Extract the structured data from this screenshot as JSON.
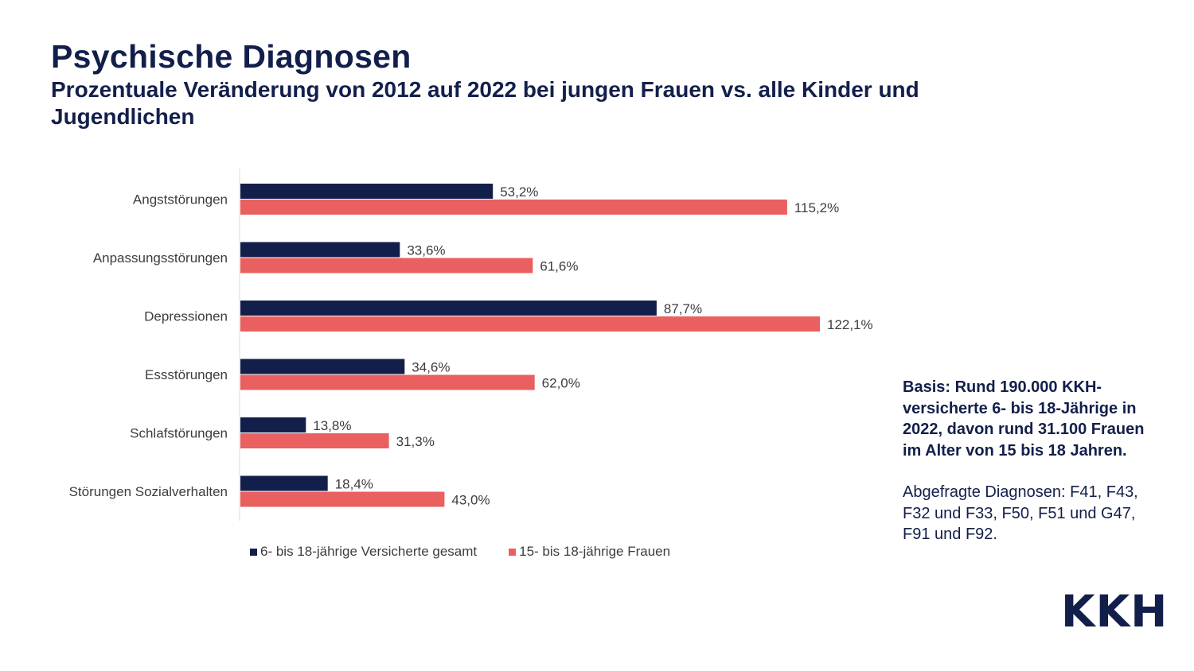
{
  "header": {
    "title": "Psychische Diagnosen",
    "subtitle": "Prozentuale Veränderung von 2012 auf 2022 bei jungen Frauen vs. alle Kinder und Jugendlichen"
  },
  "colors": {
    "navy": "#131f4b",
    "coral": "#ea5f5f",
    "text": "#3d3d3d",
    "axis": "#d9d9d9"
  },
  "chart_data": {
    "type": "bar",
    "orientation": "horizontal",
    "title": "Psychische Diagnosen",
    "categories": [
      "Angststörungen",
      "Anpassungsstörungen",
      "Depressionen",
      "Essstörungen",
      "Schlafstörungen",
      "Störungen Sozialverhalten"
    ],
    "series": [
      {
        "name": "6- bis 18-jährige Versicherte gesamt",
        "color": "#131f4b",
        "values": [
          53.2,
          33.6,
          87.7,
          34.6,
          13.8,
          18.4
        ],
        "labels": [
          "53,2%",
          "33,6%",
          "87,7%",
          "34,6%",
          "13,8%",
          "18,4%"
        ]
      },
      {
        "name": "15- bis 18-jährige Frauen",
        "color": "#ea5f5f",
        "values": [
          115.2,
          61.6,
          122.1,
          62.0,
          31.3,
          43.0
        ],
        "labels": [
          "115,2%",
          "61,6%",
          "122,1%",
          "62,0%",
          "31,3%",
          "43,0%"
        ]
      }
    ],
    "xlim": [
      0,
      140
    ],
    "grid": false,
    "legend_position": "bottom"
  },
  "note": {
    "basis": "Basis: Rund 190.000 KKH-versicherte 6- bis 18-Jährige in 2022, davon rund 31.100 Frauen im Alter von 15 bis 18 Jahren.",
    "diagnoses": "Abgefragte Diagnosen: F41, F43, F32 und F33, F50, F51 und G47, F91 und F92."
  },
  "logo": {
    "text": "KKH"
  }
}
